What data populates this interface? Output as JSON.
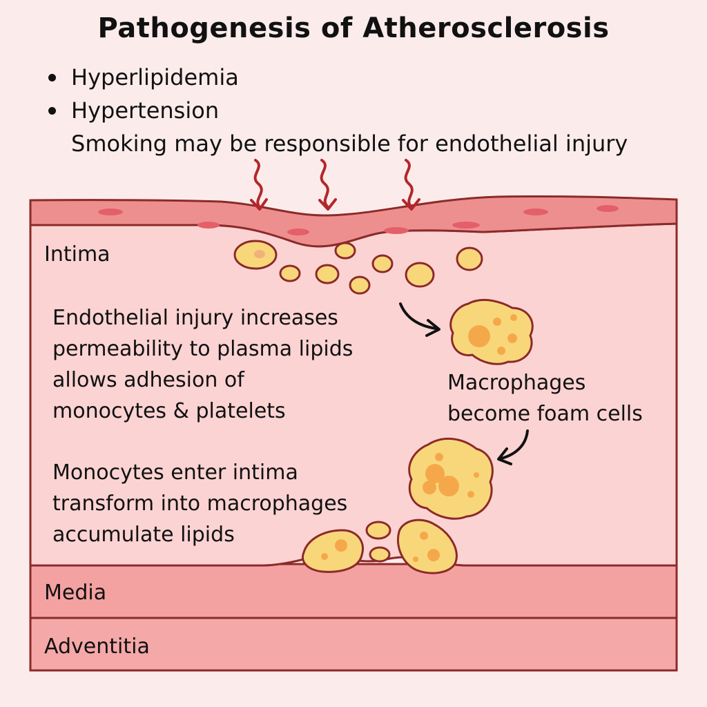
{
  "title": "Pathogenesis of Atherosclerosis",
  "bullets": [
    "Hyperlipidemia",
    "Hypertension"
  ],
  "bullet_note": "Smoking may be responsible for endothelial injury",
  "layers": {
    "intima": "Intima",
    "media": "Media",
    "adventitia": "Adventitia"
  },
  "steps": {
    "endothelial": [
      "Endothelial injury increases",
      "permeability to plasma lipids",
      "allows adhesion of",
      "monocytes & platelets"
    ],
    "monocytes": [
      "Monocytes enter intima",
      "transform into macrophages",
      "accumulate lipids"
    ],
    "foam": [
      "Macrophages",
      "become foam cells"
    ]
  },
  "colors": {
    "background": "#fbeceb",
    "endothelium": "#ee8f8f",
    "intima": "#fcd3d3",
    "media": "#f4a1a1",
    "adventitia": "#f5a8a8",
    "outline": "#8b2a2a",
    "lipid": "#f8d77a",
    "injury_arrow": "#b3262a"
  }
}
